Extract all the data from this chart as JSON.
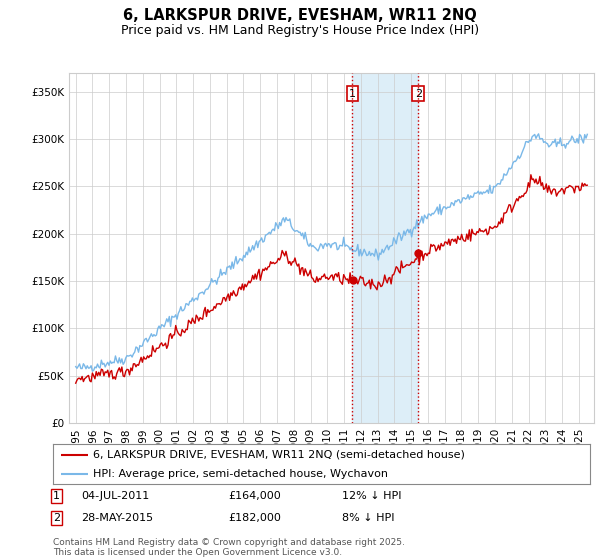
{
  "title": "6, LARKSPUR DRIVE, EVESHAM, WR11 2NQ",
  "subtitle": "Price paid vs. HM Land Registry's House Price Index (HPI)",
  "ylim": [
    0,
    370000
  ],
  "yticks": [
    0,
    50000,
    100000,
    150000,
    200000,
    250000,
    300000,
    350000
  ],
  "ytick_labels": [
    "£0",
    "£50K",
    "£100K",
    "£150K",
    "£200K",
    "£250K",
    "£300K",
    "£350K"
  ],
  "hpi_color": "#7ab8e8",
  "price_color": "#cc0000",
  "vline_color": "#cc0000",
  "vband_color": "#ddeef8",
  "purchase1_year": 2011.5,
  "purchase2_year": 2015.42,
  "purchase1_price": 164000,
  "purchase2_price": 182000,
  "legend_line1": "6, LARKSPUR DRIVE, EVESHAM, WR11 2NQ (semi-detached house)",
  "legend_line2": "HPI: Average price, semi-detached house, Wychavon",
  "note1_label": "1",
  "note1_date": "04-JUL-2011",
  "note1_price": "£164,000",
  "note1_hpi": "12% ↓ HPI",
  "note2_label": "2",
  "note2_date": "28-MAY-2015",
  "note2_price": "£182,000",
  "note2_hpi": "8% ↓ HPI",
  "copyright": "Contains HM Land Registry data © Crown copyright and database right 2025.\nThis data is licensed under the Open Government Licence v3.0.",
  "background_color": "#ffffff",
  "grid_color": "#cccccc",
  "title_fontsize": 10.5,
  "subtitle_fontsize": 9,
  "tick_fontsize": 7.5,
  "legend_fontsize": 8,
  "note_fontsize": 8,
  "copyright_fontsize": 6.5,
  "xlim_left": 1994.6,
  "xlim_right": 2025.9
}
